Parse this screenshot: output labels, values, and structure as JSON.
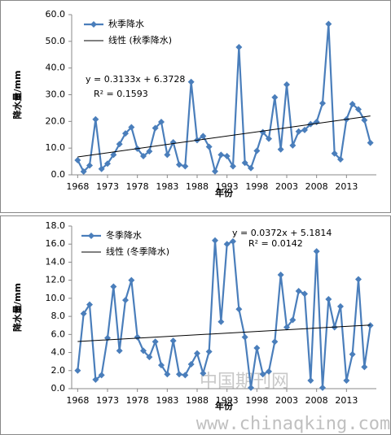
{
  "chart_data": [
    {
      "type": "line",
      "ylabel": "降水量/mm",
      "xlabel": "年份",
      "x": [
        1968,
        1969,
        1970,
        1971,
        1972,
        1973,
        1974,
        1975,
        1976,
        1977,
        1978,
        1979,
        1980,
        1981,
        1982,
        1983,
        1984,
        1985,
        1986,
        1987,
        1988,
        1989,
        1990,
        1991,
        1992,
        1993,
        1994,
        1995,
        1996,
        1997,
        1998,
        1999,
        2000,
        2001,
        2002,
        2003,
        2004,
        2005,
        2006,
        2007,
        2008,
        2009,
        2010,
        2011,
        2012,
        2013,
        2014,
        2015,
        2016,
        2017
      ],
      "series": [
        {
          "name": "秋季降水",
          "color": "#4a7ebb",
          "values": [
            5.5,
            1.2,
            3.5,
            20.8,
            2.2,
            4.2,
            7.5,
            11.5,
            15.5,
            17.8,
            9.8,
            7.0,
            8.8,
            17.5,
            19.8,
            7.5,
            12.2,
            3.8,
            3.2,
            34.8,
            13.0,
            14.5,
            10.5,
            1.3,
            7.5,
            7.0,
            3.2,
            47.8,
            4.5,
            2.5,
            9.0,
            16.0,
            13.5,
            29.0,
            9.5,
            33.8,
            11.0,
            16.2,
            16.8,
            19.0,
            19.8,
            26.8,
            56.5,
            8.0,
            5.8,
            20.8,
            26.5,
            24.5,
            20.5,
            12.0
          ]
        }
      ],
      "trendline": {
        "name": "线性 (秋季降水)",
        "x": [
          1968,
          2017
        ],
        "values": [
          6.69,
          22.04
        ]
      },
      "equation": "y = 0.3133x + 6.3728",
      "r2": "R² = 0.1593",
      "xlim": [
        1967,
        2018
      ],
      "xticks": [
        1968,
        1973,
        1978,
        1983,
        1988,
        1993,
        1998,
        2003,
        2008,
        2013
      ],
      "ylim": [
        0,
        60
      ],
      "yticks": [
        {
          "value": 0,
          "label": "0.0"
        },
        {
          "value": 10,
          "label": "10.0"
        },
        {
          "value": 20,
          "label": "20.0"
        },
        {
          "value": 30,
          "label": "30.0"
        },
        {
          "value": 40,
          "label": "40.0"
        },
        {
          "value": 50,
          "label": "50.0"
        },
        {
          "value": 60,
          "label": "60.0"
        }
      ]
    },
    {
      "type": "line",
      "ylabel": "降水量/mm",
      "xlabel": "年份",
      "x": [
        1968,
        1969,
        1970,
        1971,
        1972,
        1973,
        1974,
        1975,
        1976,
        1977,
        1978,
        1979,
        1980,
        1981,
        1982,
        1983,
        1984,
        1985,
        1986,
        1987,
        1988,
        1989,
        1990,
        1991,
        1992,
        1993,
        1994,
        1995,
        1996,
        1997,
        1998,
        1999,
        2000,
        2001,
        2002,
        2003,
        2004,
        2005,
        2006,
        2007,
        2008,
        2009,
        2010,
        2011,
        2012,
        2013,
        2014,
        2015,
        2016,
        2017
      ],
      "series": [
        {
          "name": "冬季降水",
          "color": "#4a7ebb",
          "values": [
            2.0,
            8.3,
            9.3,
            1.0,
            1.5,
            5.6,
            11.3,
            4.2,
            9.8,
            12.0,
            5.7,
            4.2,
            3.5,
            5.2,
            2.6,
            1.6,
            5.3,
            1.6,
            1.5,
            2.7,
            3.9,
            1.7,
            4.1,
            16.4,
            7.4,
            16.0,
            16.3,
            8.8,
            5.7,
            0.1,
            4.5,
            1.6,
            1.9,
            5.2,
            12.6,
            6.8,
            7.6,
            10.8,
            10.5,
            0.9,
            15.2,
            0.1,
            9.9,
            6.8,
            9.1,
            0.9,
            3.8,
            12.1,
            2.4,
            7.0
          ]
        }
      ],
      "trendline": {
        "name": "线性 (冬季降水)",
        "x": [
          1968,
          2017
        ],
        "values": [
          5.22,
          7.04
        ]
      },
      "equation": "y = 0.0372x + 5.1814",
      "r2": "R² = 0.0142",
      "xlim": [
        1967,
        2018
      ],
      "xticks": [
        1968,
        1973,
        1978,
        1983,
        1988,
        1993,
        1998,
        2003,
        2008,
        2013
      ],
      "ylim": [
        0,
        18
      ],
      "yticks": [
        {
          "value": 0,
          "label": "0.0"
        },
        {
          "value": 2,
          "label": "2.0"
        },
        {
          "value": 4,
          "label": "4.0"
        },
        {
          "value": 6,
          "label": "6.0"
        },
        {
          "value": 8,
          "label": "8.0"
        },
        {
          "value": 10,
          "label": "10.0"
        },
        {
          "value": 12,
          "label": "12.0"
        },
        {
          "value": 14,
          "label": "14.0"
        },
        {
          "value": 16,
          "label": "16.0"
        },
        {
          "value": 18,
          "label": "18.0"
        }
      ]
    }
  ],
  "watermark": {
    "cn": "中国期刊网",
    "url": "www.chinaqking.com"
  }
}
